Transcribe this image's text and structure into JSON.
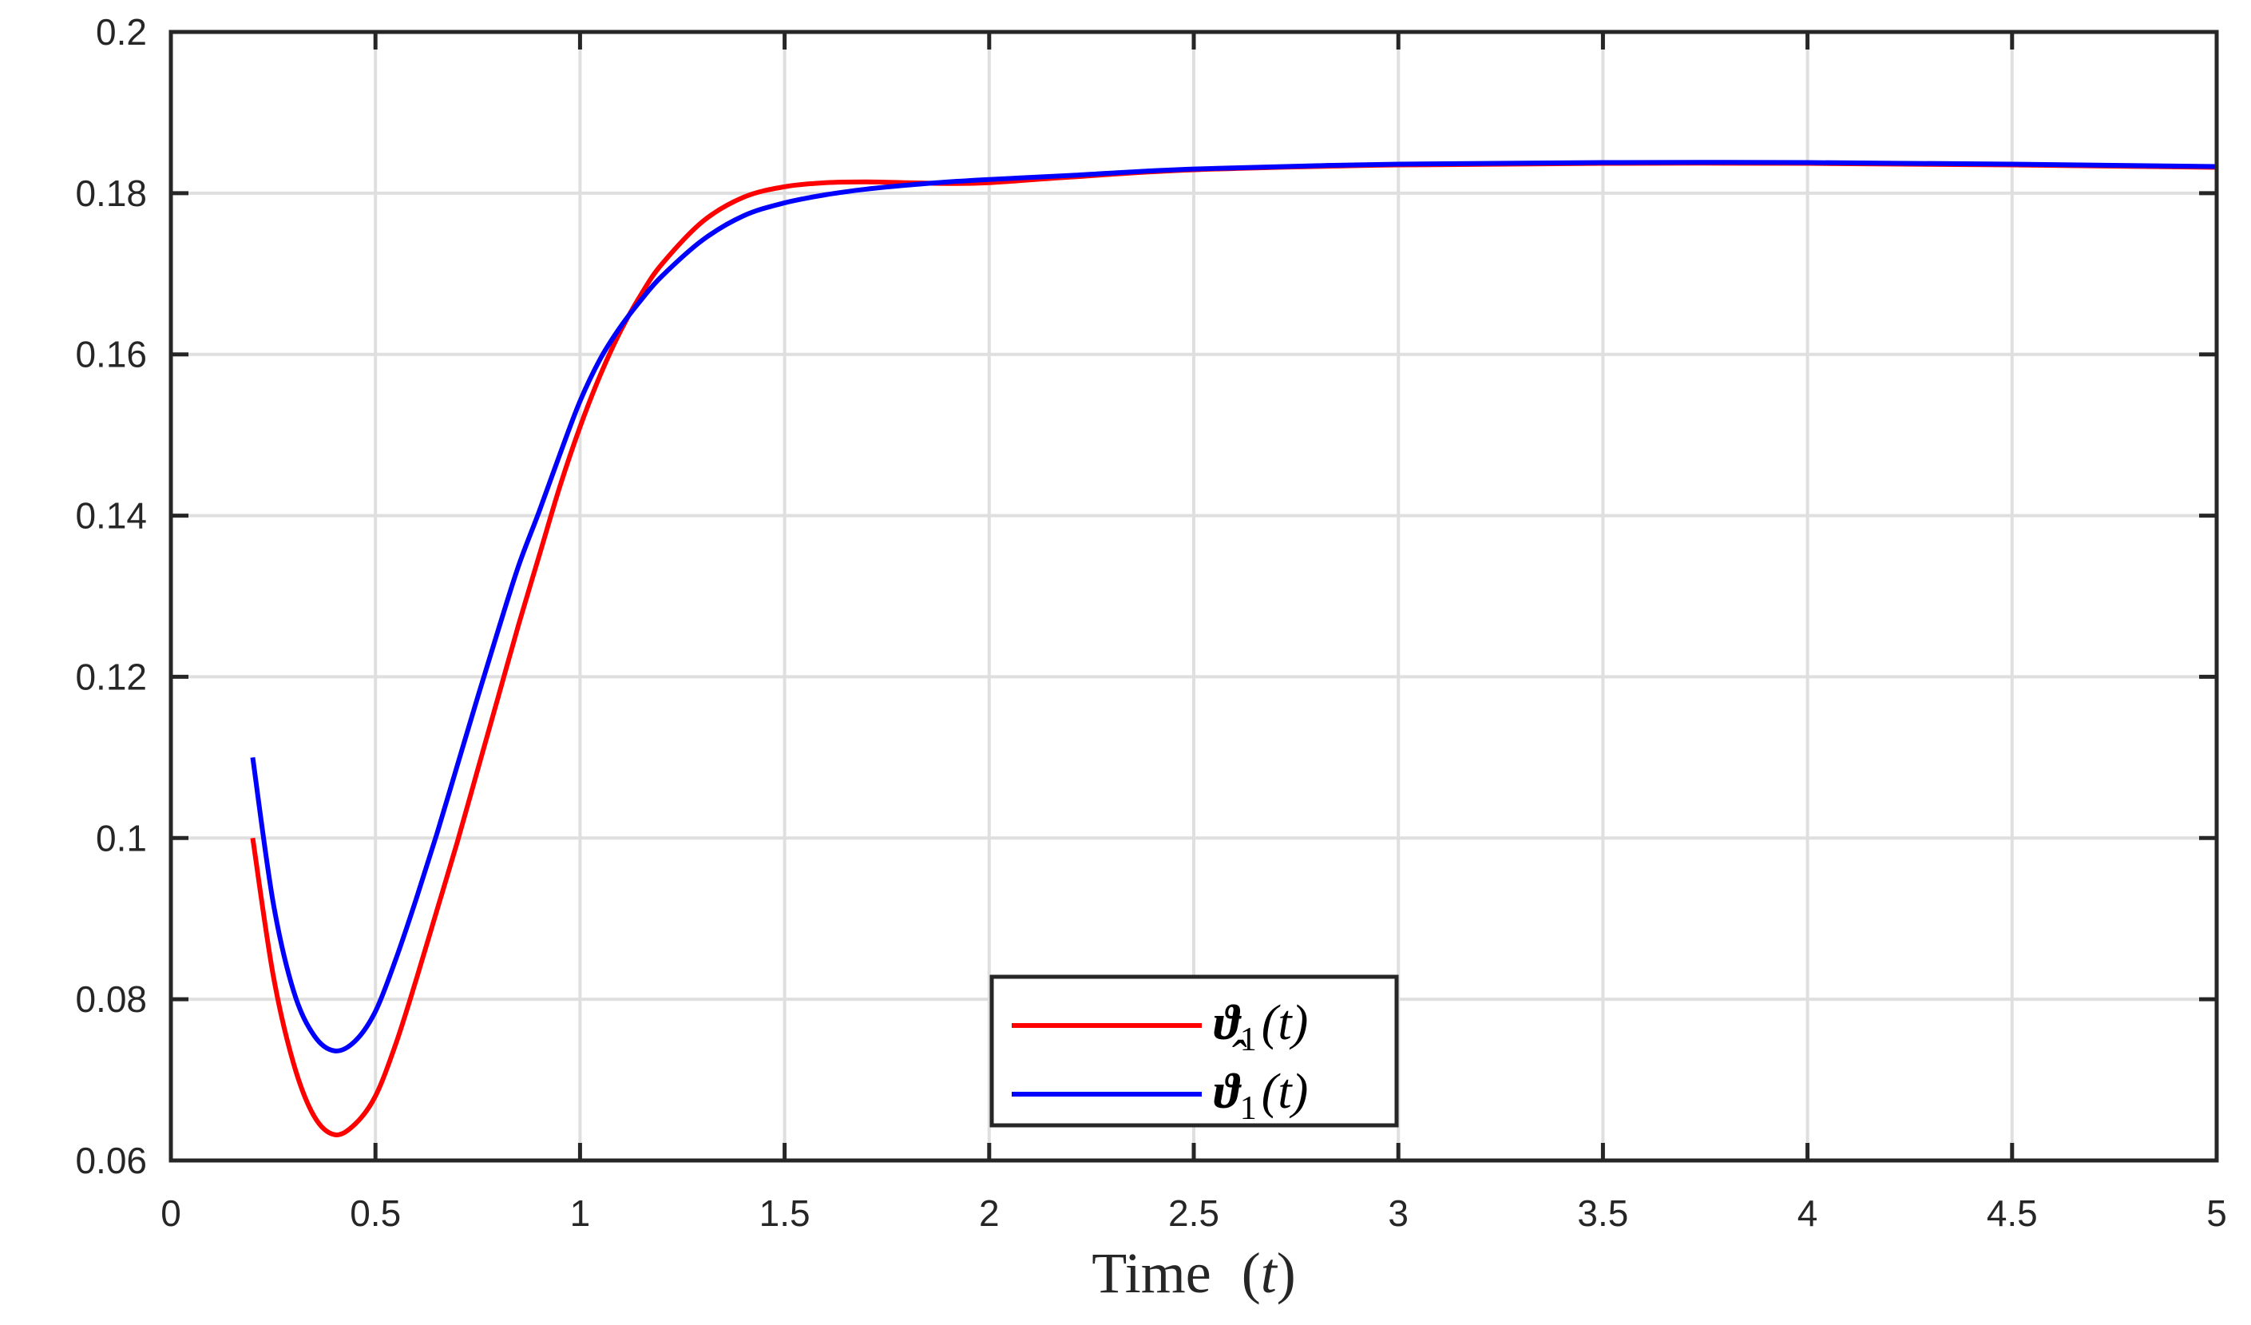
{
  "chart_data": {
    "type": "line",
    "title": "",
    "xlabel": "Time (t)",
    "ylabel": "",
    "xlim": [
      0,
      5
    ],
    "ylim": [
      0.06,
      0.2
    ],
    "grid": true,
    "legend_position": "lower center (inside axes)",
    "x_ticks": [
      "0",
      "0.5",
      "1",
      "1.5",
      "2",
      "2.5",
      "3",
      "3.5",
      "4",
      "4.5",
      "5"
    ],
    "y_ticks": [
      "0.06",
      "0.08",
      "0.1",
      "0.12",
      "0.14",
      "0.16",
      "0.18",
      "0.2"
    ],
    "series": [
      {
        "name": "ϑ1(t)",
        "color": "#ff0000",
        "x": [
          0.2,
          0.25,
          0.3,
          0.35,
          0.4,
          0.45,
          0.5,
          0.55,
          0.6,
          0.65,
          0.7,
          0.75,
          0.8,
          0.85,
          0.9,
          0.95,
          1.0,
          1.05,
          1.1,
          1.15,
          1.2,
          1.3,
          1.4,
          1.5,
          1.6,
          1.7,
          1.8,
          1.9,
          2.0,
          2.2,
          2.5,
          3.0,
          3.5,
          4.0,
          4.5,
          5.0
        ],
        "y": [
          0.1,
          0.083,
          0.072,
          0.0655,
          0.0632,
          0.0645,
          0.068,
          0.0745,
          0.0825,
          0.091,
          0.0995,
          0.1085,
          0.1175,
          0.1265,
          0.135,
          0.1435,
          0.151,
          0.1575,
          0.163,
          0.1675,
          0.1712,
          0.1765,
          0.1795,
          0.1808,
          0.1813,
          0.1814,
          0.1813,
          0.1812,
          0.1813,
          0.182,
          0.1829,
          0.1835,
          0.1837,
          0.1837,
          0.1835,
          0.1832
        ]
      },
      {
        "name": "ϑ̂1(t)",
        "color": "#0000ff",
        "x": [
          0.2,
          0.25,
          0.3,
          0.35,
          0.4,
          0.45,
          0.5,
          0.55,
          0.6,
          0.65,
          0.7,
          0.75,
          0.8,
          0.85,
          0.9,
          0.95,
          1.0,
          1.05,
          1.1,
          1.15,
          1.2,
          1.3,
          1.4,
          1.5,
          1.6,
          1.7,
          1.8,
          1.9,
          2.0,
          2.2,
          2.5,
          3.0,
          3.5,
          4.0,
          4.5,
          5.0
        ],
        "y": [
          0.11,
          0.092,
          0.081,
          0.0755,
          0.0736,
          0.0748,
          0.0785,
          0.085,
          0.0925,
          0.1005,
          0.109,
          0.1175,
          0.1258,
          0.1338,
          0.1405,
          0.1475,
          0.1542,
          0.1595,
          0.1635,
          0.1668,
          0.1697,
          0.1742,
          0.1772,
          0.1788,
          0.1798,
          0.1805,
          0.181,
          0.1814,
          0.1817,
          0.1822,
          0.183,
          0.1836,
          0.1838,
          0.1838,
          0.1836,
          0.1833
        ]
      }
    ]
  },
  "labels": {
    "xlabel_text": "Time",
    "xlabel_var": "(t)",
    "legend": [
      {
        "symbol": "ϑ",
        "sub": "1",
        "arg": "(t)",
        "hat": false,
        "color": "#ff0000"
      },
      {
        "symbol": "ϑ",
        "sub": "1",
        "arg": "(t)",
        "hat": true,
        "color": "#0000ff"
      }
    ]
  },
  "colors": {
    "axis": "#262626",
    "grid": "#dfdfdf",
    "background": "#ffffff"
  }
}
